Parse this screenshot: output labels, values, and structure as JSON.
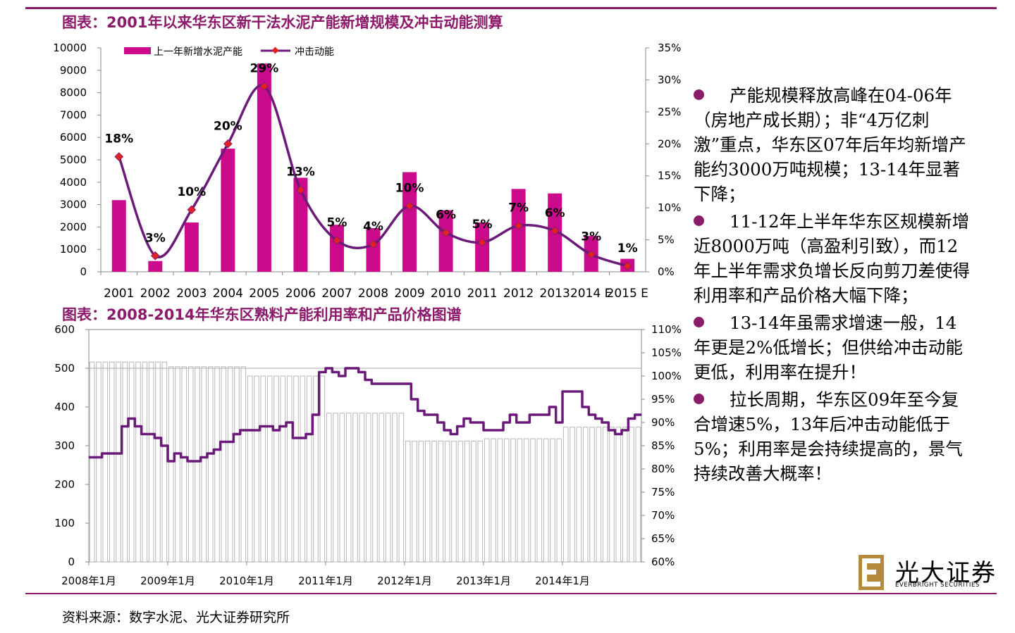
{
  "chart_data": [
    {
      "type": "bar+line",
      "title": "图表：2001年以来华东区新干法水泥产能新增规模及冲击动能测算",
      "categories": [
        "2001",
        "2002",
        "2003",
        "2004",
        "2005",
        "2006",
        "2007",
        "2008",
        "2009",
        "2010",
        "2011",
        "2012",
        "2013",
        "2014 E",
        "2015 E"
      ],
      "series": [
        {
          "name": "上一年新增水泥产能",
          "kind": "bar",
          "axis": "left",
          "color": "#cc0a8c",
          "values": [
            3200,
            480,
            2200,
            5500,
            9300,
            4200,
            2100,
            1950,
            4450,
            2750,
            2200,
            3700,
            3500,
            1600,
            580
          ]
        },
        {
          "name": "冲击动能",
          "kind": "line",
          "axis": "right",
          "color": "#6b1a7a",
          "values": [
            0.18,
            0.025,
            0.097,
            0.2,
            0.29,
            0.128,
            0.049,
            0.043,
            0.103,
            0.061,
            0.046,
            0.072,
            0.064,
            0.027,
            0.009
          ],
          "labels": [
            "18%",
            "3%",
            "10%",
            "20%",
            "29%",
            "13%",
            "5%",
            "4%",
            "10%",
            "6%",
            "5%",
            "7%",
            "6%",
            "3%",
            "1%"
          ]
        }
      ],
      "ylim_left": [
        0,
        10000
      ],
      "yticks_left": [
        "0",
        "1000",
        "2000",
        "3000",
        "4000",
        "5000",
        "6000",
        "7000",
        "8000",
        "9000",
        "10000"
      ],
      "ylim_right": [
        0,
        0.35
      ],
      "yticks_right": [
        "0%",
        "5%",
        "10%",
        "15%",
        "20%",
        "25%",
        "30%",
        "35%"
      ],
      "legend": "top"
    },
    {
      "type": "bar+line",
      "title": "图表：2008-2014年华东区熟料产能利用率和产品价格图谱",
      "xlabels": [
        "2008年1月",
        "2009年1月",
        "2010年1月",
        "2011年1月",
        "2012年1月",
        "2013年1月",
        "2014年1月"
      ],
      "n_months": 84,
      "series": [
        {
          "kind": "bar",
          "axis": "right",
          "color": "#b7b7b7",
          "values": [
            1.03,
            1.03,
            1.03,
            1.03,
            1.03,
            1.03,
            1.03,
            1.03,
            1.03,
            1.03,
            1.03,
            1.03,
            1.02,
            1.02,
            1.02,
            1.02,
            1.02,
            1.02,
            1.02,
            1.02,
            1.02,
            1.02,
            1.02,
            1.02,
            1.0,
            1.0,
            1.0,
            1.0,
            1.0,
            1.0,
            1.0,
            1.0,
            1.0,
            1.0,
            1.0,
            1.0,
            0.92,
            0.92,
            0.92,
            0.92,
            0.92,
            0.92,
            0.92,
            0.92,
            0.92,
            0.92,
            0.92,
            0.92,
            0.86,
            0.86,
            0.86,
            0.86,
            0.86,
            0.86,
            0.86,
            0.86,
            0.86,
            0.86,
            0.86,
            0.86,
            0.865,
            0.865,
            0.865,
            0.865,
            0.865,
            0.865,
            0.865,
            0.865,
            0.865,
            0.865,
            0.865,
            0.865,
            0.89,
            0.89,
            0.89,
            0.89,
            0.89,
            0.89,
            0.89,
            0.89,
            0.89,
            0.89,
            0.89,
            0.89
          ]
        },
        {
          "kind": "line",
          "axis": "left",
          "color": "#6b1a7a",
          "values": [
            270,
            270,
            280,
            280,
            280,
            350,
            370,
            350,
            330,
            330,
            320,
            300,
            260,
            280,
            270,
            260,
            260,
            270,
            280,
            290,
            310,
            310,
            330,
            340,
            340,
            340,
            350,
            350,
            340,
            350,
            360,
            320,
            320,
            330,
            380,
            490,
            500,
            490,
            480,
            500,
            500,
            490,
            470,
            460,
            460,
            460,
            460,
            460,
            460,
            420,
            390,
            380,
            380,
            360,
            340,
            330,
            350,
            370,
            360,
            360,
            340,
            340,
            340,
            360,
            380,
            360,
            360,
            380,
            380,
            380,
            400,
            360,
            440,
            440,
            440,
            400,
            380,
            370,
            360,
            340,
            330,
            340,
            370,
            380
          ]
        }
      ],
      "ylim_left": [
        0,
        600
      ],
      "yticks_left": [
        "0",
        "100",
        "200",
        "300",
        "400",
        "500",
        "600"
      ],
      "ylim_right": [
        0.6,
        1.1
      ],
      "yticks_right": [
        "60%",
        "65%",
        "70%",
        "75%",
        "80%",
        "85%",
        "90%",
        "95%",
        "100%",
        "105%",
        "110%"
      ]
    }
  ],
  "bullets": [
    "产能规模释放高峰在04-06年（房地产成长期）；非“4万亿刺激”重点，华东区07年后年均新增产能约3000万吨规模；13-14年显著下降；",
    "11-12年上半年华东区规模新增近8000万吨（高盈利引致），而12年上半年需求负增长反向剪刀差使得利用率和产品价格大幅下降；",
    "13-14年虽需求增速一般，14年更是2%低增长；但供给冲击动能更低，利用率在提升！",
    "拉长周期，华东区09年至今复合增速5%，13年后冲击动能低于5%；利用率是会持续提高的，景气持续改善大概率！"
  ],
  "source": "资料来源：数字水泥、光大证券研究所",
  "logo": {
    "cn": "光大证券",
    "en": "EVERBRIGHT SECURITIES"
  },
  "colors": {
    "accent": "#8b1a6b",
    "bar": "#cc0a8c",
    "line": "#6b1a7a",
    "gray": "#b7b7b7"
  }
}
